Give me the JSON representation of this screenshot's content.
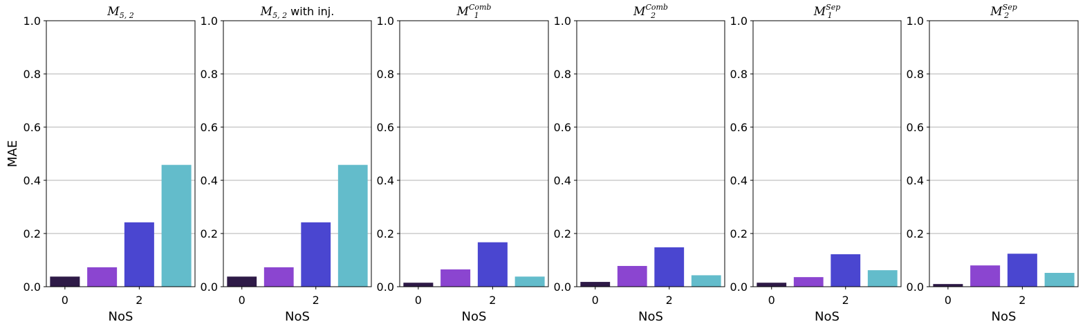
{
  "chart_data": [
    {
      "type": "bar",
      "title": {
        "main": "M",
        "sub": "5, 2",
        "sup": "",
        "suffix": ""
      },
      "ylabel": "MAE",
      "xlabel": "NoS",
      "ylim": [
        0,
        1.0
      ],
      "yticks": [
        "0.0",
        "0.2",
        "0.4",
        "0.6",
        "0.8",
        "1.0"
      ],
      "xticks": [
        {
          "pos": 0,
          "label": "0"
        },
        {
          "pos": 2,
          "label": "2"
        }
      ],
      "grid": "y",
      "values": [
        0.038,
        0.073,
        0.242,
        0.458
      ]
    },
    {
      "type": "bar",
      "title": {
        "main": "M",
        "sub": "5, 2",
        "sup": "",
        "suffix": " with inj."
      },
      "ylabel": "",
      "xlabel": "NoS",
      "ylim": [
        0,
        1.0
      ],
      "yticks": [
        "0.0",
        "0.2",
        "0.4",
        "0.6",
        "0.8",
        "1.0"
      ],
      "xticks": [
        {
          "pos": 0,
          "label": "0"
        },
        {
          "pos": 2,
          "label": "2"
        }
      ],
      "grid": "y",
      "values": [
        0.038,
        0.073,
        0.242,
        0.458
      ]
    },
    {
      "type": "bar",
      "title": {
        "main": "M",
        "sub": "1",
        "sup": "Comb",
        "suffix": ""
      },
      "ylabel": "",
      "xlabel": "NoS",
      "ylim": [
        0,
        1.0
      ],
      "yticks": [
        "0.0",
        "0.2",
        "0.4",
        "0.6",
        "0.8",
        "1.0"
      ],
      "xticks": [
        {
          "pos": 0,
          "label": "0"
        },
        {
          "pos": 2,
          "label": "2"
        }
      ],
      "grid": "y",
      "values": [
        0.015,
        0.065,
        0.167,
        0.038
      ]
    },
    {
      "type": "bar",
      "title": {
        "main": "M",
        "sub": "2",
        "sup": "Comb",
        "suffix": ""
      },
      "ylabel": "",
      "xlabel": "NoS",
      "ylim": [
        0,
        1.0
      ],
      "yticks": [
        "0.0",
        "0.2",
        "0.4",
        "0.6",
        "0.8",
        "1.0"
      ],
      "xticks": [
        {
          "pos": 0,
          "label": "0"
        },
        {
          "pos": 2,
          "label": "2"
        }
      ],
      "grid": "y",
      "values": [
        0.018,
        0.078,
        0.148,
        0.043
      ]
    },
    {
      "type": "bar",
      "title": {
        "main": "M",
        "sub": "1",
        "sup": "Sep",
        "suffix": ""
      },
      "ylabel": "",
      "xlabel": "NoS",
      "ylim": [
        0,
        1.0
      ],
      "yticks": [
        "0.0",
        "0.2",
        "0.4",
        "0.6",
        "0.8",
        "1.0"
      ],
      "xticks": [
        {
          "pos": 0,
          "label": "0"
        },
        {
          "pos": 2,
          "label": "2"
        }
      ],
      "grid": "y",
      "values": [
        0.015,
        0.036,
        0.122,
        0.062
      ]
    },
    {
      "type": "bar",
      "title": {
        "main": "M",
        "sub": "2",
        "sup": "Sep",
        "suffix": ""
      },
      "ylabel": "",
      "xlabel": "NoS",
      "ylim": [
        0,
        1.0
      ],
      "yticks": [
        "0.0",
        "0.2",
        "0.4",
        "0.6",
        "0.8",
        "1.0"
      ],
      "xticks": [
        {
          "pos": 0,
          "label": "0"
        },
        {
          "pos": 2,
          "label": "2"
        }
      ],
      "grid": "y",
      "values": [
        0.01,
        0.08,
        0.124,
        0.052
      ]
    }
  ],
  "colors": {
    "bars": [
      "#2e1a47",
      "#8b45d0",
      "#4a46d0",
      "#63bccb"
    ],
    "grid": "#b0b0b0",
    "axis": "#000000"
  }
}
